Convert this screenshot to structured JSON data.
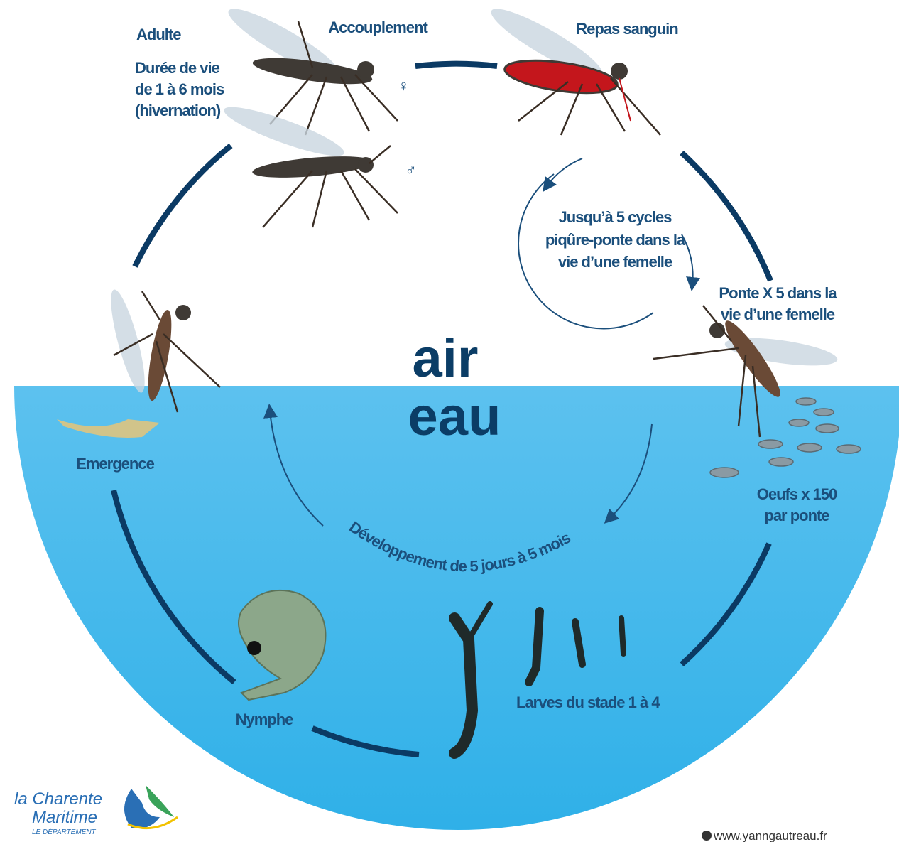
{
  "header": {
    "adulte": "Adulte",
    "duree": [
      "Durée de vie",
      "de 1 à 6 mois",
      "(hivernation)"
    ],
    "accouplement": "Accouplement",
    "female": "♀",
    "male": "♂",
    "repas": "Repas sanguin"
  },
  "cycle": {
    "cycles": [
      "Jusqu’à 5 cycles",
      "piqûre-ponte dans la",
      "vie d’une femelle"
    ],
    "ponte": [
      "Ponte X 5 dans la",
      "vie d’une femelle"
    ],
    "oeufs": [
      "Oeufs x 150",
      "par ponte"
    ],
    "developpement": "Développement de 5 jours à 5 mois",
    "larves": "Larves du stade 1 à 4",
    "nymphe": "Nymphe",
    "emergence": "Emergence"
  },
  "zones": {
    "air": "air",
    "eau": "eau"
  },
  "footer": {
    "logo": [
      "la Charente",
      "Maritime",
      "LE DÉPARTEMENT"
    ],
    "credit": "www.yanngautreau.fr"
  }
}
